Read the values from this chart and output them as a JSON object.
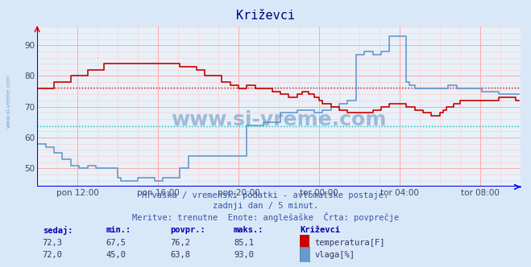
{
  "title": "Križevci",
  "bg_color": "#d8e8f8",
  "plot_bg_color": "#e8f0f8",
  "xlabel_ticks": [
    "pon 12:00",
    "pon 16:00",
    "pon 20:00",
    "tor 00:00",
    "tor 04:00",
    "tor 08:00"
  ],
  "yticks": [
    50,
    60,
    70,
    80,
    90
  ],
  "ymin": 44,
  "ymax": 96,
  "xmin": 0,
  "xmax": 288,
  "avg_temp": 76.2,
  "avg_vlaga": 63.8,
  "temp_color": "#cc0000",
  "vlaga_color": "#6699cc",
  "avg_temp_color": "#cc0000",
  "avg_vlaga_color": "#00cccc",
  "watermark": "www.si-vreme.com",
  "subtitle1": "Hrvaška / vremenski podatki - avtomatske postaje.",
  "subtitle2": "zadnji dan / 5 minut.",
  "subtitle3": "Meritve: trenutne  Enote: anglešaške  Črta: povprečje",
  "legend_title": "Križevci",
  "stat_headers": [
    "sedaj:",
    "min.:",
    "povpr.:",
    "maks.:"
  ],
  "temp_stats": [
    "72,3",
    "67,5",
    "76,2",
    "85,1"
  ],
  "vlaga_stats": [
    "72,0",
    "45,0",
    "63,8",
    "93,0"
  ],
  "temp_label": "temperatura[F]",
  "vlaga_label": "vlaga[%]"
}
